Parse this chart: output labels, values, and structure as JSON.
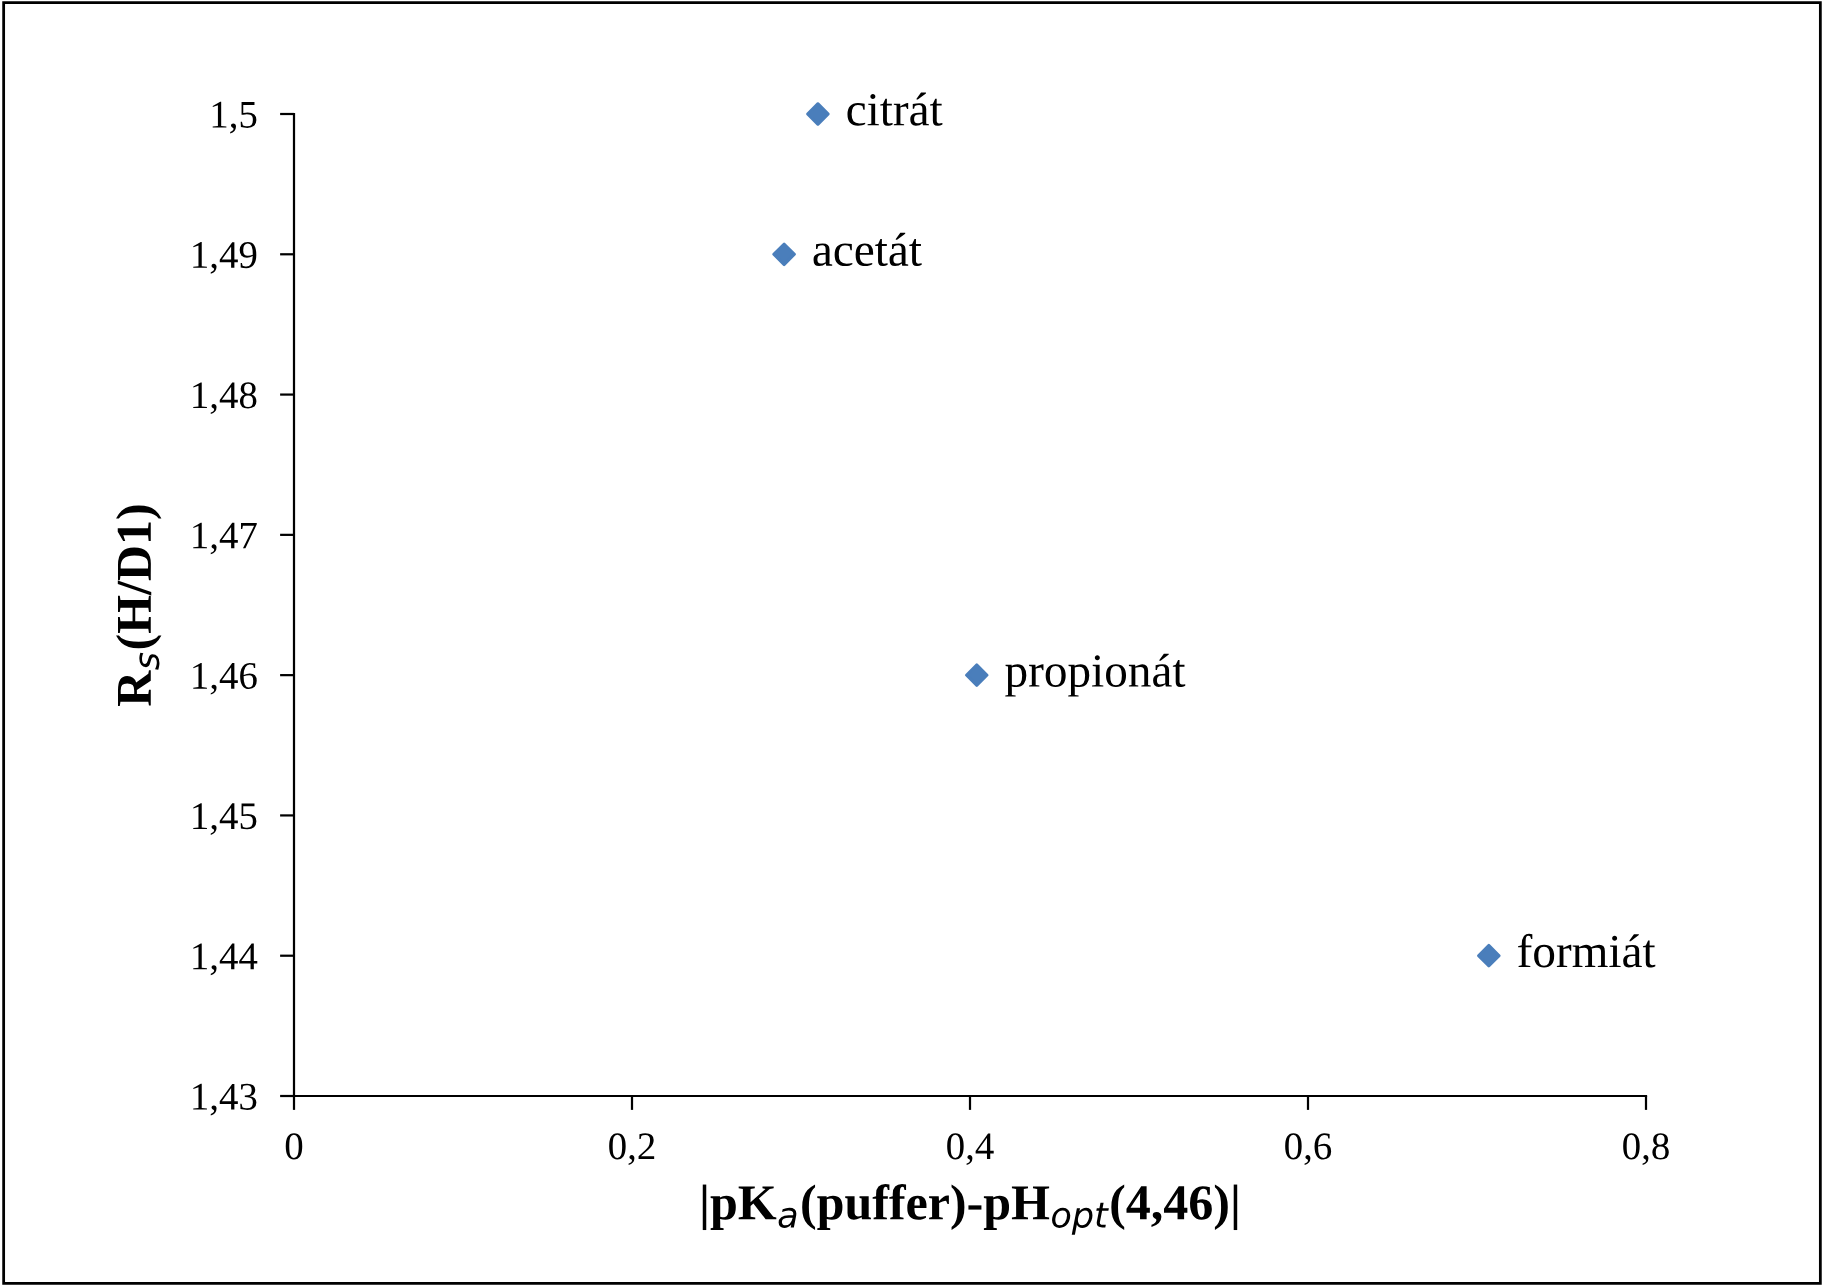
{
  "chart_data": {
    "type": "scatter",
    "xlabel": "|pK$_{a}$(puffer)-pH$_{opt}$(4,46)|",
    "ylabel": "R$_{s}$(H/D1)",
    "series": [
      {
        "color": "#4a7ebb",
        "x": [
          0.31,
          0.29,
          0.404,
          0.707
        ],
        "values": [
          1.5,
          1.49,
          1.46,
          1.44
        ]
      }
    ],
    "annotations": [
      {
        "text": "citrát",
        "x": 0.31,
        "y": 1.5
      },
      {
        "text": "acetát",
        "x": 0.29,
        "y": 1.49
      },
      {
        "text": "propionát",
        "x": 0.404,
        "y": 1.46
      },
      {
        "text": "formiát",
        "x": 0.707,
        "y": 1.44
      }
    ],
    "xlim": [
      0,
      0.8
    ],
    "ylim": [
      1.43,
      1.5
    ],
    "xticks": [
      0,
      {
        "value": 0.2,
        "label": "0,2"
      },
      {
        "value": 0.4,
        "label": "0,4"
      },
      {
        "value": 0.6,
        "label": "0,6"
      },
      {
        "value": 0.8,
        "label": "0,8"
      }
    ],
    "yticks": [
      {
        "value": 1.43,
        "label": "1,43"
      },
      {
        "value": 1.44,
        "label": "1,44"
      },
      {
        "value": 1.45,
        "label": "1,45"
      },
      {
        "value": 1.46,
        "label": "1,46"
      },
      {
        "value": 1.47,
        "label": "1,47"
      },
      {
        "value": 1.48,
        "label": "1,48"
      },
      {
        "value": 1.49,
        "label": "1,49"
      },
      {
        "value": 1.5,
        "label": "1,5"
      }
    ],
    "grid": false,
    "legend": false,
    "marker": "diamond"
  }
}
